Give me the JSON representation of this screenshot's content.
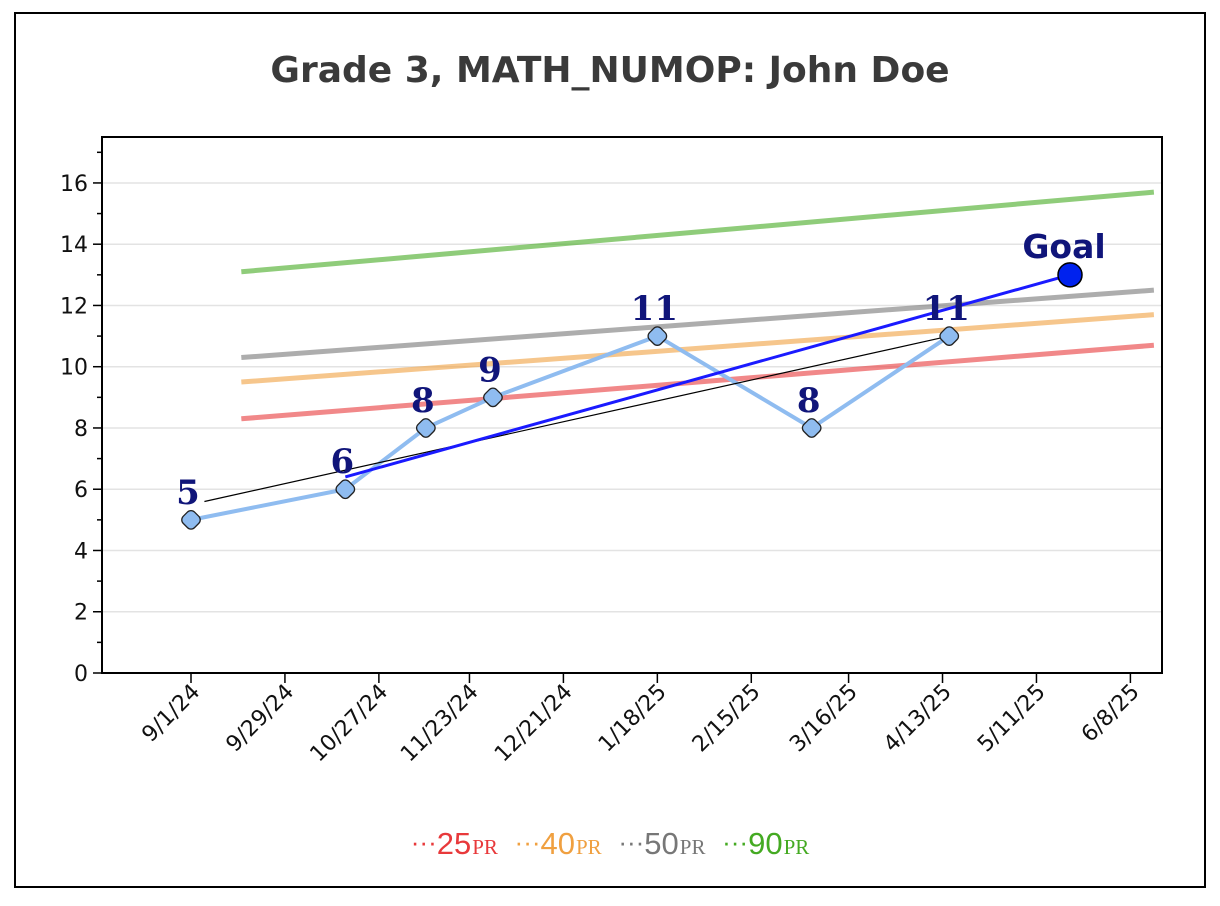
{
  "chart_data": {
    "type": "line",
    "title": "Grade 3, MATH_NUMOP: John Doe",
    "xlabel": "",
    "ylabel": "",
    "ylim": [
      0,
      17.5
    ],
    "y_ticks": [
      0,
      2,
      4,
      6,
      8,
      10,
      12,
      14,
      16
    ],
    "x_tick_labels": [
      "9/1/24",
      "9/29/24",
      "10/27/24",
      "11/23/24",
      "12/21/24",
      "1/18/25",
      "2/15/25",
      "3/16/25",
      "4/13/25",
      "5/11/25",
      "6/8/25"
    ],
    "grid": "horizontal",
    "legend_position": "bottom",
    "scores": {
      "name": "",
      "x": [
        "9/1/24",
        "10/17/24",
        "11/10/24",
        "11/30/24",
        "1/18/25",
        "3/5/25",
        "4/15/25"
      ],
      "y": [
        5,
        6,
        8,
        9,
        11,
        8,
        11
      ],
      "labels": [
        "5",
        "6",
        "8",
        "9",
        "11",
        "8",
        "11"
      ],
      "color": "#8fbcf0"
    },
    "trend_line": {
      "x": [
        "9/5/24",
        "4/15/25"
      ],
      "y": [
        5.6,
        11
      ],
      "color": "#000000"
    },
    "goal_line": {
      "x": [
        "10/17/24",
        "5/21/25"
      ],
      "y": [
        6.4,
        13
      ],
      "color": "#1a1aff",
      "goal_label": "Goal",
      "goal_value": 13
    },
    "percentile_lines": [
      {
        "name": "25PR",
        "value": "25",
        "suffix": "PR",
        "color": "#e8393b",
        "x": [
          "9/16/24",
          "6/15/25"
        ],
        "y": [
          8.3,
          10.7
        ]
      },
      {
        "name": "40PR",
        "value": "40",
        "suffix": "PR",
        "color": "#f0a040",
        "x": [
          "9/16/24",
          "6/15/25"
        ],
        "y": [
          9.5,
          11.7
        ]
      },
      {
        "name": "50PR",
        "value": "50",
        "suffix": "PR",
        "color": "#777777",
        "x": [
          "9/16/24",
          "6/15/25"
        ],
        "y": [
          10.3,
          12.5
        ]
      },
      {
        "name": "90PR",
        "value": "90",
        "suffix": "PR",
        "color": "#44aa22",
        "x": [
          "9/16/24",
          "6/15/25"
        ],
        "y": [
          13.1,
          15.7
        ]
      }
    ]
  }
}
